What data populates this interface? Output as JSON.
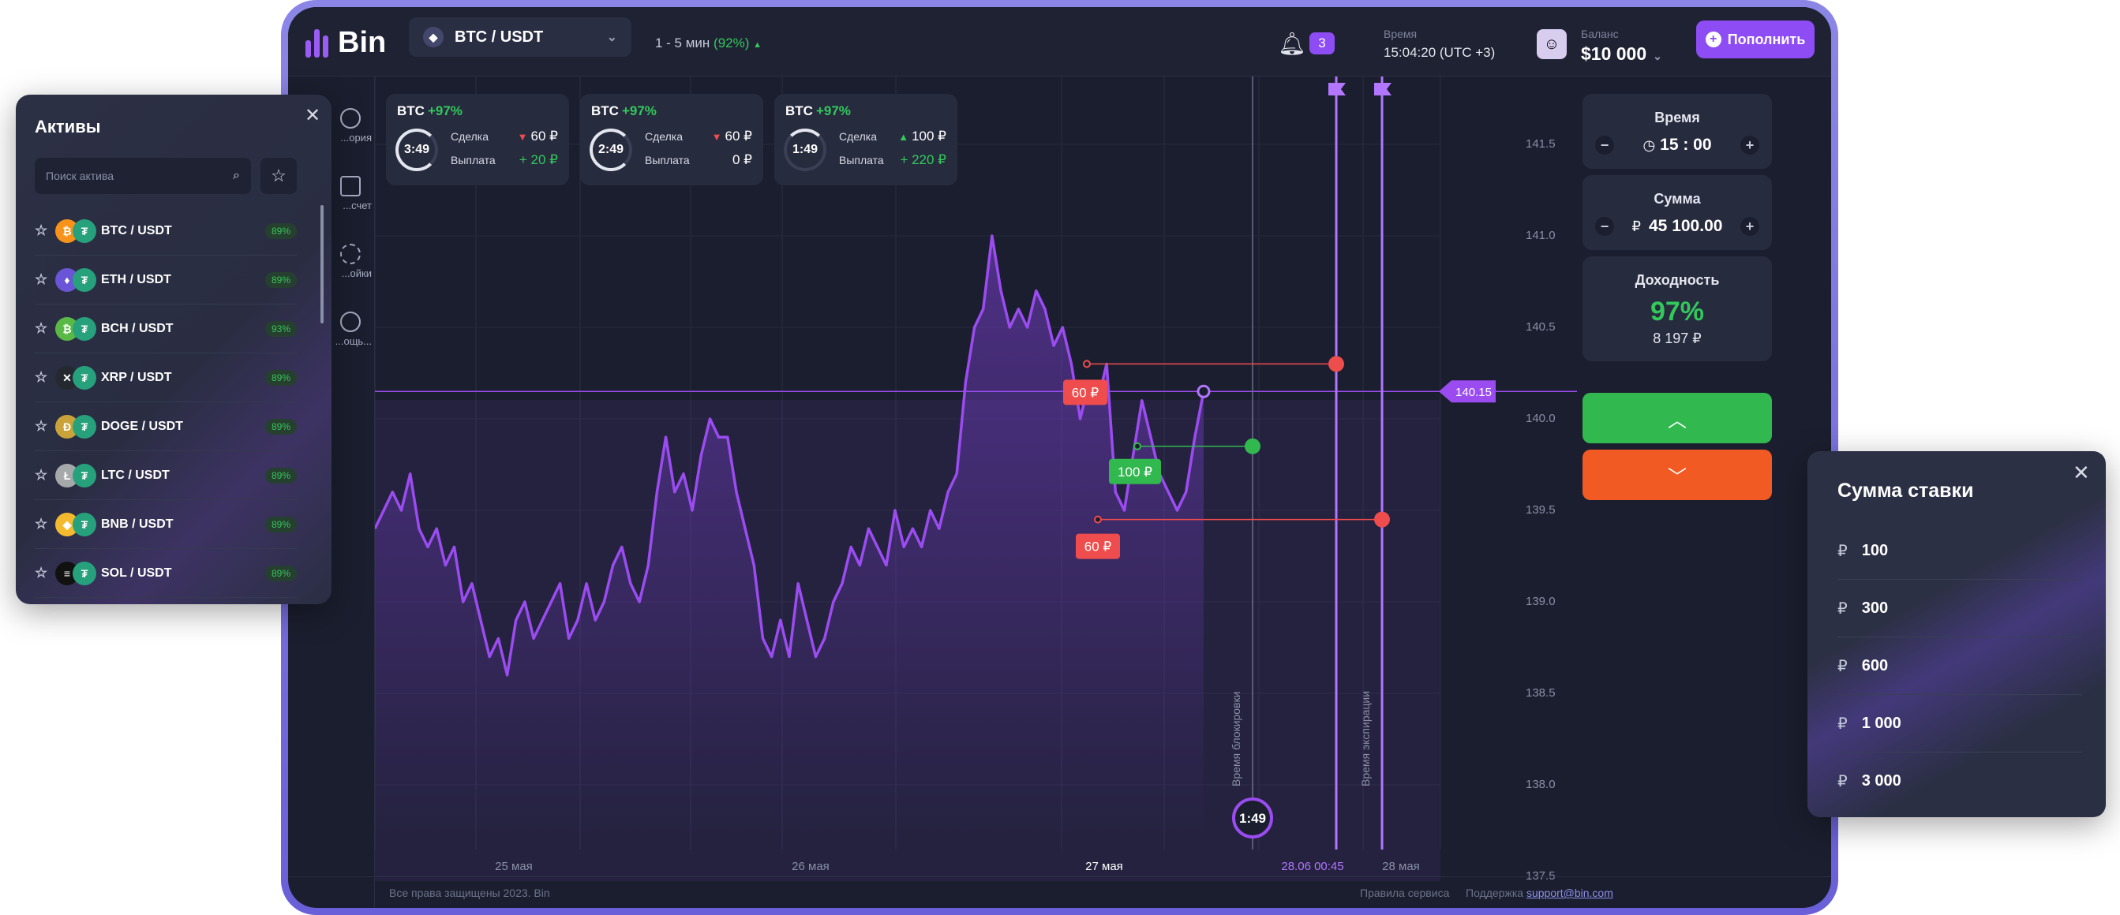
{
  "header": {
    "logo": "Bin",
    "pair": "BTC / USDT",
    "pair_icon": "ethereum-icon",
    "timeframe_prefix": "1 - 5 мин",
    "timeframe_pct": "(92%)",
    "notifications_count": "3",
    "time_label": "Время",
    "time_value": "15:04:20 (UTC +3)",
    "balance_label": "Баланс",
    "balance_value": "$10 000",
    "topup_label": "Пополнить"
  },
  "leftnav": {
    "items": [
      {
        "label": "...ория"
      },
      {
        "label": "...счет"
      },
      {
        "label": "...ойки"
      },
      {
        "label": "...ощь..."
      }
    ]
  },
  "trades": [
    {
      "asset": "BTC",
      "pct": "+97%",
      "timer": "3:49",
      "deal_label": "Сделка",
      "deal_value": "60 ₽",
      "deal_dir": "down",
      "payout_label": "Выплата",
      "payout_value": "+ 20 ₽"
    },
    {
      "asset": "BTC",
      "pct": "+97%",
      "timer": "2:49",
      "deal_label": "Сделка",
      "deal_value": "60 ₽",
      "deal_dir": "down",
      "payout_label": "Выплата",
      "payout_value": "0 ₽"
    },
    {
      "asset": "BTC",
      "pct": "+97%",
      "timer": "1:49",
      "deal_label": "Сделка",
      "deal_value": "100 ₽",
      "deal_dir": "up",
      "payout_label": "Выплата",
      "payout_value": "+ 220 ₽"
    }
  ],
  "chart_data": {
    "type": "line",
    "y_ticks": [
      141.5,
      141.0,
      140.5,
      140.0,
      139.5,
      139.0,
      138.5,
      138.0,
      137.5
    ],
    "ylim": [
      137.5,
      141.5
    ],
    "x_ticks": [
      "25 мая",
      "26 мая",
      "27 мая",
      "28.06 00:45",
      "28 мая"
    ],
    "current_price": "140.15",
    "series": [
      {
        "values": [
          139.4,
          139.5,
          139.6,
          139.5,
          139.7,
          139.4,
          139.3,
          139.4,
          139.2,
          139.3,
          139.0,
          139.1,
          138.9,
          138.7,
          138.8,
          138.6,
          138.9,
          139.0,
          138.8,
          138.9,
          139.0,
          139.1,
          138.8,
          138.9,
          139.1,
          138.9,
          139.0,
          139.2,
          139.3,
          139.1,
          139.0,
          139.2,
          139.6,
          139.9,
          139.6,
          139.7,
          139.5,
          139.8,
          140.0,
          139.9,
          139.9,
          139.6,
          139.4,
          139.2,
          138.8,
          138.7,
          138.9,
          138.7,
          139.1,
          138.9,
          138.7,
          138.8,
          139.0,
          139.1,
          139.3,
          139.2,
          139.4,
          139.3,
          139.2,
          139.5,
          139.3,
          139.4,
          139.3,
          139.5,
          139.4,
          139.6,
          139.7,
          140.2,
          140.5,
          140.6,
          141.0,
          140.7,
          140.5,
          140.6,
          140.5,
          140.7,
          140.6,
          140.4,
          140.5,
          140.3,
          140.0,
          140.2,
          140.1,
          140.3,
          139.6,
          139.5,
          139.8,
          140.1,
          139.9,
          139.7,
          139.6,
          139.5,
          139.6,
          139.9,
          140.15
        ]
      }
    ],
    "markers": [
      {
        "label": "60 ₽",
        "color": "#ef4d4d"
      },
      {
        "label": "100 ₽",
        "color": "#31b84e"
      },
      {
        "label": "60 ₽",
        "color": "#ef4d4d"
      }
    ],
    "lock_label": "Время блокировки",
    "expiry_label": "Время экспирации",
    "lock_timer": "1:49"
  },
  "right_panel": {
    "time_label": "Время",
    "time_value": "15 : 00",
    "amount_label": "Сумма",
    "amount_currency": "₽",
    "amount_value": "45 100.00",
    "yield_label": "Доходность",
    "yield_pct": "97%",
    "yield_value": "8 197 ₽"
  },
  "footer": {
    "copyright": "Все права защищены 2023. Bin",
    "rules": "Правила сервиса",
    "support_label": "Поддержка",
    "support_email": "support@bin.com"
  },
  "assets_panel": {
    "title": "Активы",
    "search_placeholder": "Поиск актива",
    "items": [
      {
        "name": "BTC / USDT",
        "pct": "89%",
        "coin": "₿",
        "coin_color": "#f7931a"
      },
      {
        "name": "ETH / USDT",
        "pct": "89%",
        "coin": "♦",
        "coin_color": "#6a55d6"
      },
      {
        "name": "BCH / USDT",
        "pct": "93%",
        "coin": "₿",
        "coin_color": "#5ab847"
      },
      {
        "name": "XRP / USDT",
        "pct": "89%",
        "coin": "✕",
        "coin_color": "#23292f"
      },
      {
        "name": "DOGE / USDT",
        "pct": "89%",
        "coin": "Ð",
        "coin_color": "#c9a33a"
      },
      {
        "name": "LTC / USDT",
        "pct": "89%",
        "coin": "Ł",
        "coin_color": "#a6a9aa"
      },
      {
        "name": "BNB / USDT",
        "pct": "89%",
        "coin": "◆",
        "coin_color": "#f3ba2f"
      },
      {
        "name": "SOL / USDT",
        "pct": "89%",
        "coin": "≡",
        "coin_color": "#111111"
      }
    ]
  },
  "stake_panel": {
    "title": "Сумма ставки",
    "currency": "₽",
    "amounts": [
      "100",
      "300",
      "600",
      "1 000",
      "3 000"
    ]
  }
}
